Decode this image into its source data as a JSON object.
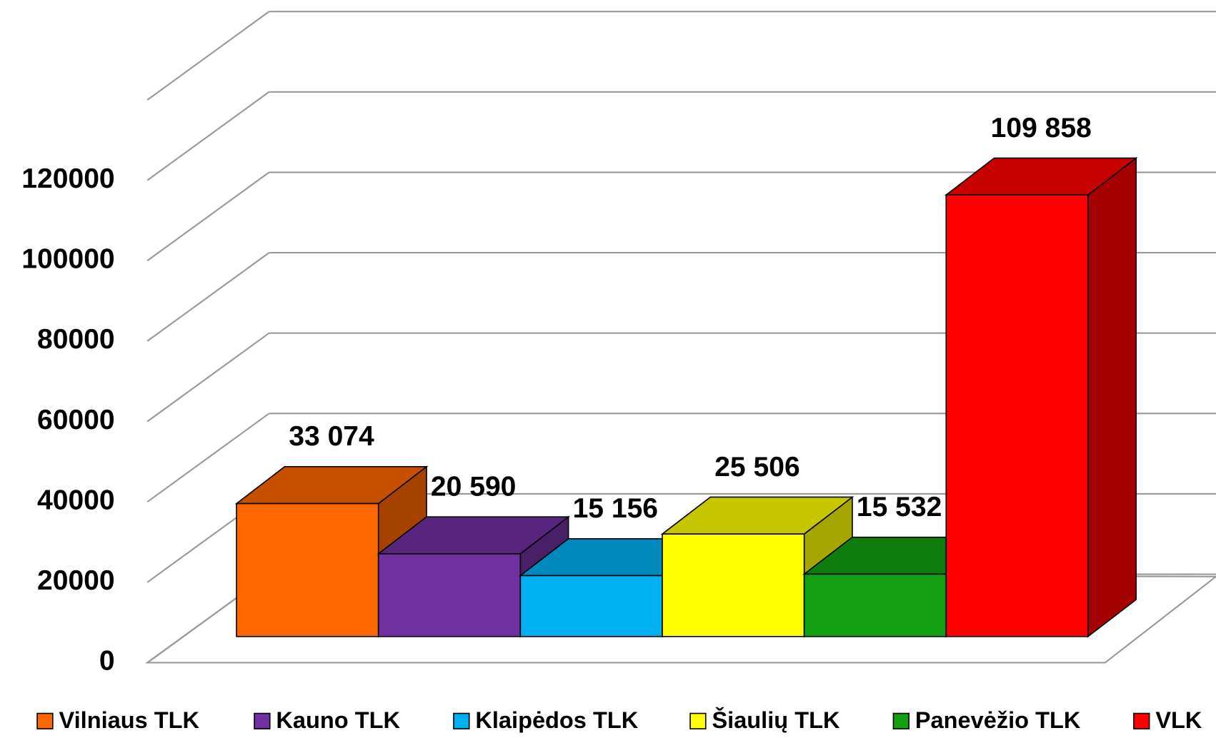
{
  "chart_data": {
    "type": "bar3d",
    "series": [
      {
        "name": "Vilniaus TLK",
        "color": "#ff6600",
        "values": [
          33074
        ],
        "value_labels": [
          "33 074"
        ]
      },
      {
        "name": "Kauno TLK",
        "color": "#7030a0",
        "values": [
          20590
        ],
        "value_labels": [
          "20 590"
        ]
      },
      {
        "name": "Klaipėdos TLK",
        "color": "#00b0f0",
        "values": [
          15156
        ],
        "value_labels": [
          "15 156"
        ]
      },
      {
        "name": "Šiaulių TLK",
        "color": "#ffff00",
        "values": [
          25506
        ],
        "value_labels": [
          "25 506"
        ]
      },
      {
        "name": "Panevėžio TLK",
        "color": "#12a012",
        "values": [
          15532
        ],
        "value_labels": [
          "15 532"
        ]
      },
      {
        "name": "VLK",
        "color": "#ff0000",
        "values": [
          109858
        ],
        "value_labels": [
          "109 858"
        ]
      }
    ],
    "ylim": [
      0,
      140000
    ],
    "yticks": [
      0,
      20000,
      40000,
      60000,
      80000,
      100000,
      120000
    ],
    "grid": true,
    "legend": "bottom"
  }
}
